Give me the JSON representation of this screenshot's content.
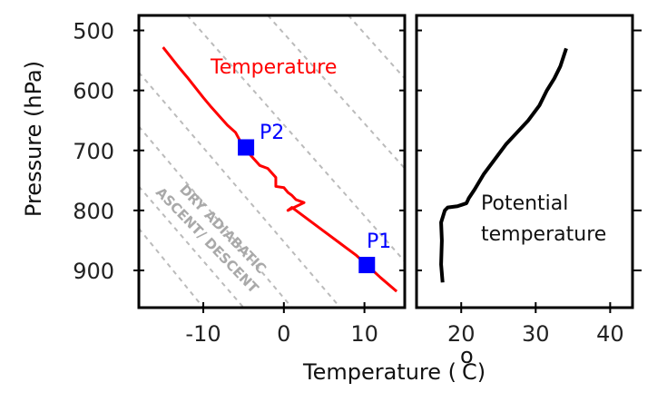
{
  "chart_data": [
    {
      "type": "line",
      "panel": "left",
      "xlabel": "Temperature (°C)",
      "ylabel": "Pressure (hPa)",
      "xlim": [
        -18,
        15
      ],
      "ylim": [
        962,
        475
      ],
      "x_ticks": [
        -10,
        0,
        10
      ],
      "y_ticks": [
        500,
        600,
        700,
        800,
        900
      ],
      "y_tick_labels": [
        "500",
        "600",
        "700",
        "800",
        "900"
      ],
      "x_tick_labels": [
        "-10",
        "0",
        "10"
      ],
      "grid": false,
      "series": [
        {
          "name": "Temperature",
          "color": "#ff0000",
          "x": [
            -15,
            -14,
            -13,
            -12,
            -11,
            -10,
            -9,
            -8,
            -7,
            -6,
            -5,
            -4,
            -3,
            -2,
            -1,
            -1,
            0,
            0.5,
            1,
            1.5,
            2.5,
            0.5,
            1,
            3,
            5,
            7,
            9,
            10.3,
            12,
            14
          ],
          "y": [
            528,
            545,
            562,
            578,
            595,
            612,
            628,
            643,
            658,
            670,
            695,
            710,
            725,
            730,
            745,
            760,
            762,
            770,
            775,
            782,
            787,
            800,
            795,
            815,
            835,
            855,
            875,
            891,
            912,
            935
          ]
        }
      ],
      "points": [
        {
          "label": "P1",
          "x": 10.3,
          "y": 891,
          "color": "#0000ff"
        },
        {
          "label": "P2",
          "x": -4.7,
          "y": 695,
          "color": "#0000ff"
        }
      ],
      "dry_adiabats": {
        "style": "dashed",
        "color": "#bbbbbb",
        "lines": [
          [
            [
              -18,
              570
            ],
            [
              7,
              962
            ]
          ],
          [
            [
              -18,
              660
            ],
            [
              1,
              962
            ]
          ],
          [
            [
              -18,
              760
            ],
            [
              -5,
              962
            ]
          ],
          [
            [
              -18,
              830
            ],
            [
              -10,
              962
            ]
          ],
          [
            [
              -12,
              475
            ],
            [
              15,
              885
            ]
          ],
          [
            [
              -2,
              475
            ],
            [
              15,
              730
            ]
          ],
          [
            [
              8,
              475
            ],
            [
              15,
              580
            ]
          ]
        ],
        "annotation": [
          "DRY ADIABATIC",
          "ASCENT/ DESCENT"
        ]
      }
    },
    {
      "type": "line",
      "panel": "right",
      "xlim": [
        14,
        43
      ],
      "ylim": [
        962,
        475
      ],
      "x_ticks": [
        20,
        30,
        40
      ],
      "x_tick_labels": [
        "20",
        "30",
        "40"
      ],
      "grid": false,
      "series": [
        {
          "name": "Potential temperature",
          "color": "#000000",
          "x": [
            17.5,
            17.3,
            17.4,
            17.3,
            17.8,
            18.2,
            19.5,
            20.7,
            21,
            21.8,
            23,
            24.5,
            26,
            27.5,
            29,
            30.5,
            31.5,
            32.5,
            33.3,
            34.1
          ],
          "y": [
            920,
            890,
            850,
            820,
            800,
            795,
            793,
            788,
            780,
            765,
            740,
            715,
            690,
            670,
            650,
            625,
            600,
            580,
            560,
            530
          ]
        }
      ]
    }
  ],
  "labels": {
    "temperature_series": "Temperature",
    "potential_line1": "Potential",
    "potential_line2": "temperature",
    "p1": "P1",
    "p2": "P2",
    "dry_line1": "DRY ADIABATIC",
    "dry_line2": "ASCENT/ DESCENT",
    "ylabel": "Pressure (hPa)",
    "xlabel_main": "Temperature (",
    "xlabel_sup": "o",
    "xlabel_unit": "C)"
  }
}
